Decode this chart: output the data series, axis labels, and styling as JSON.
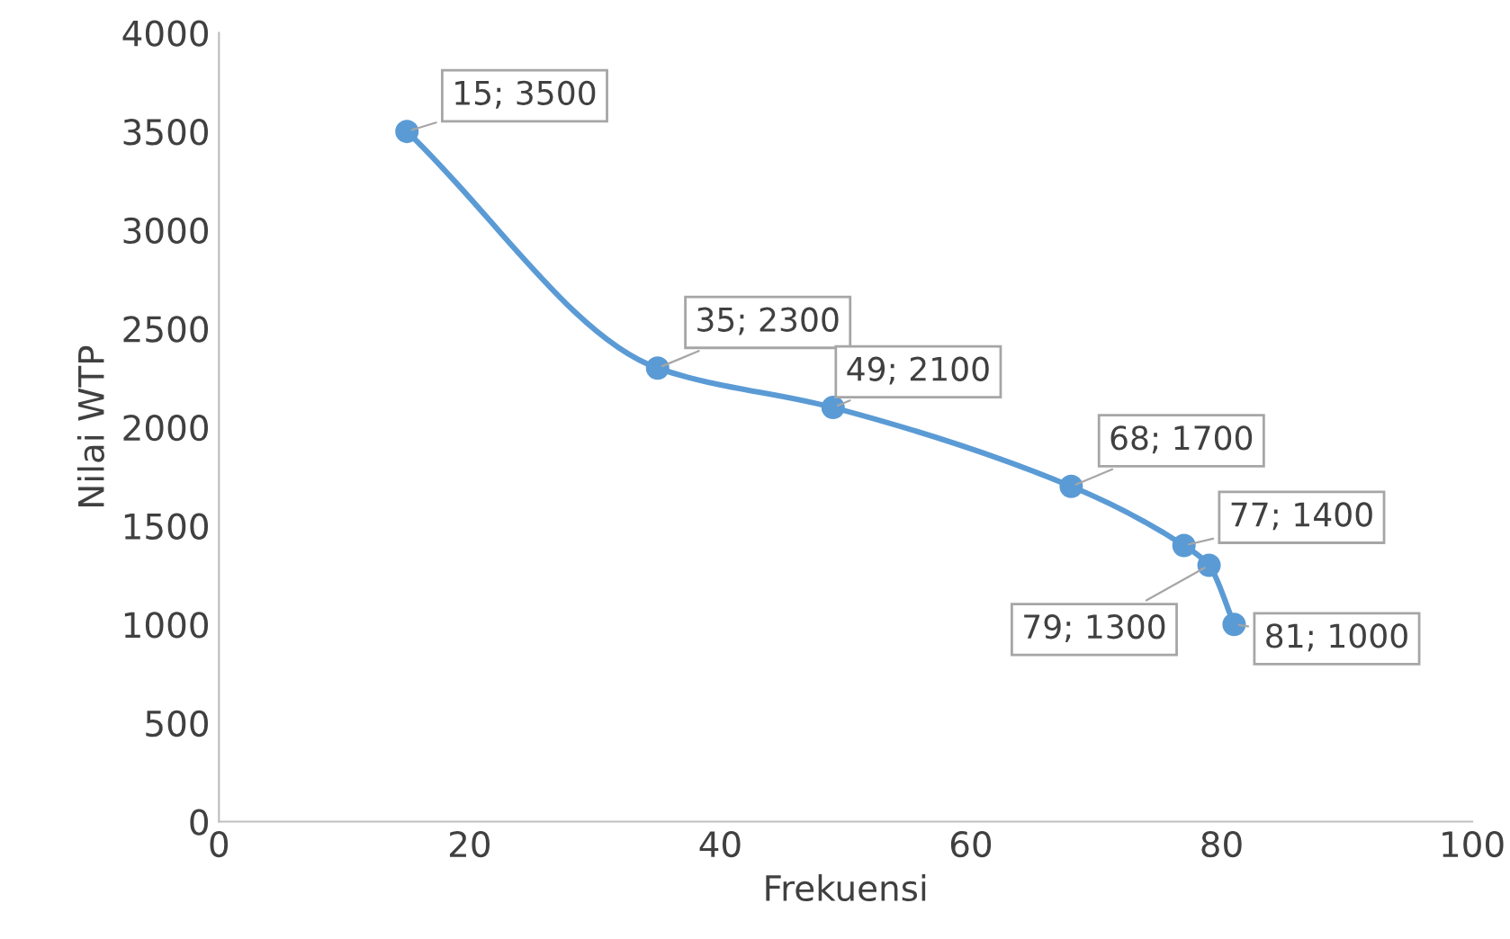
{
  "chart_data": {
    "type": "line",
    "xlabel": "Frekuensi",
    "ylabel": "Nilai WTP",
    "x": [
      15,
      35,
      49,
      68,
      77,
      79,
      81
    ],
    "series": [
      {
        "color": "#5b9bd5",
        "values": [
          3500,
          2300,
          2100,
          1700,
          1400,
          1300,
          1000
        ],
        "value_labels": [
          "15; 3500",
          "35; 2300",
          "49; 2100",
          "68; 1700",
          "77; 1400",
          "79; 1300",
          "81; 1000"
        ]
      }
    ],
    "xlim": [
      0,
      100
    ],
    "xticks": [
      0,
      20,
      40,
      60,
      80,
      100
    ],
    "ylim": [
      0,
      4000
    ],
    "yticks": [
      0,
      500,
      1000,
      1500,
      2000,
      2500,
      3000,
      3500,
      4000
    ],
    "marker": "circle",
    "line_style": "solid",
    "grid": false
  }
}
